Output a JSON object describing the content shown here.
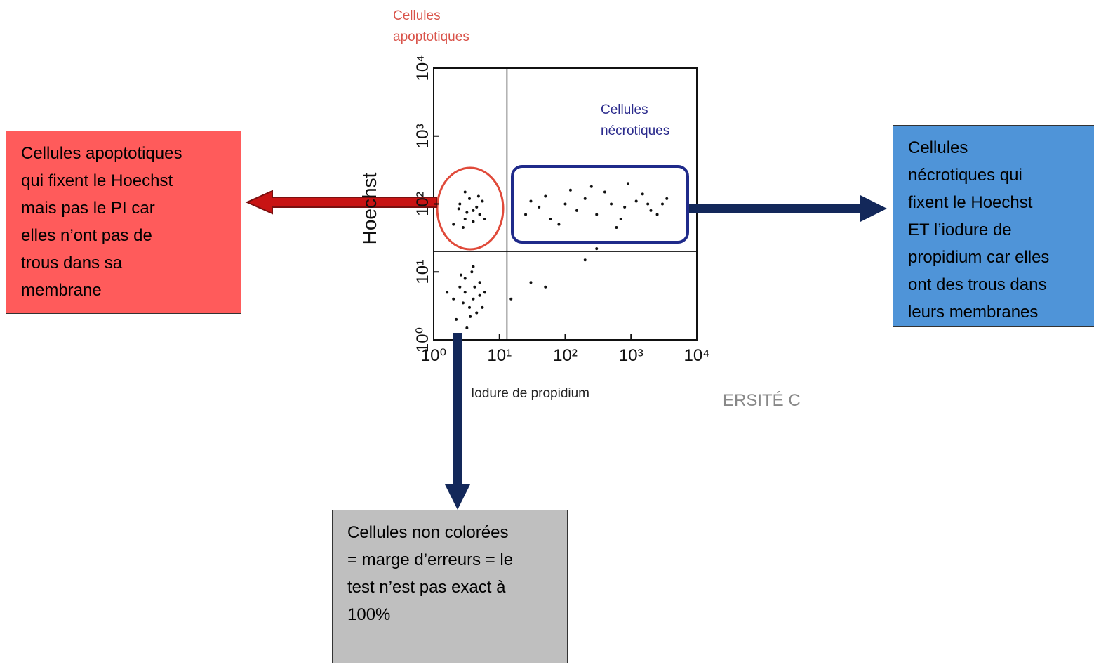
{
  "chart_data": {
    "type": "scatter",
    "log_scale": true,
    "color": "#111111",
    "x_label": "Iodure de propidium",
    "y_label": "Hoechst",
    "xlim": [
      1,
      10000
    ],
    "ylim": [
      1,
      10000
    ],
    "xticks": [
      {
        "value": 1,
        "label": "10⁰"
      },
      {
        "value": 10,
        "label": "10¹"
      },
      {
        "value": 100,
        "label": "10²"
      },
      {
        "value": 1000,
        "label": "10³"
      },
      {
        "value": 10000,
        "label": "10⁴"
      }
    ],
    "yticks": [
      {
        "value": 1,
        "label": "10⁰"
      },
      {
        "value": 10,
        "label": "10¹"
      },
      {
        "value": 100,
        "label": "10²"
      },
      {
        "value": 1000,
        "label": "10³"
      },
      {
        "value": 10000,
        "label": "10⁴"
      }
    ],
    "quadrant_x": 13,
    "quadrant_y": 20,
    "x": [
      3,
      4,
      2.5,
      3.5,
      5,
      2,
      4.5,
      3,
      2.2,
      6,
      3.8,
      2.8,
      4.2,
      5.5,
      1.6,
      3.2,
      4,
      2.6,
      5,
      3.6,
      3,
      4,
      2.5,
      5,
      3.5,
      2,
      4.5,
      6,
      3,
      2.8,
      4,
      5.5,
      3.2,
      2.4,
      4.8,
      25,
      40,
      60,
      100,
      150,
      200,
      300,
      500,
      800,
      1200,
      2000,
      3000,
      50,
      80,
      400,
      700,
      1500,
      2500,
      120,
      30,
      900,
      600,
      250,
      1800,
      3500,
      30,
      50,
      200,
      300,
      15
    ],
    "y": [
      5,
      4,
      6,
      3,
      7,
      4,
      2.5,
      8,
      2,
      5,
      10,
      3.5,
      6,
      3,
      5,
      1.5,
      12,
      9,
      4.5,
      2.2,
      60,
      80,
      100,
      70,
      120,
      50,
      90,
      60,
      150,
      45,
      55,
      110,
      75,
      85,
      130,
      70,
      90,
      60,
      100,
      80,
      120,
      70,
      100,
      90,
      110,
      80,
      100,
      130,
      50,
      150,
      60,
      140,
      70,
      160,
      110,
      200,
      45,
      180,
      100,
      120,
      7,
      6,
      15,
      22,
      4
    ],
    "annotations": [
      {
        "lines": [
          "Cellules",
          "apoptotiques"
        ],
        "color": "#d9534a"
      },
      {
        "lines": [
          "Cellules",
          "nécrotiques"
        ],
        "color": "#2a2a8c"
      }
    ],
    "watermark": "ERSITÉ C"
  },
  "boxes": [
    {
      "lines": [
        "Cellules apoptotiques",
        "qui fixent le Hoechst",
        "mais pas le PI car",
        "elles n’ont pas de",
        "trous dans sa",
        "membrane"
      ],
      "color": "#ff5b5b"
    },
    {
      "lines": [
        "Cellules",
        "nécrotiques qui",
        "fixent le Hoechst",
        "ET l’iodure de",
        "propidium car elles",
        "ont des trous dans",
        "leurs membranes"
      ],
      "color": "#4f94d8"
    },
    {
      "lines": [
        "Cellules non colorées",
        "= marge d’erreurs = le",
        "test n’est pas exact à",
        "100%"
      ],
      "color": "#bfbfbf"
    }
  ]
}
